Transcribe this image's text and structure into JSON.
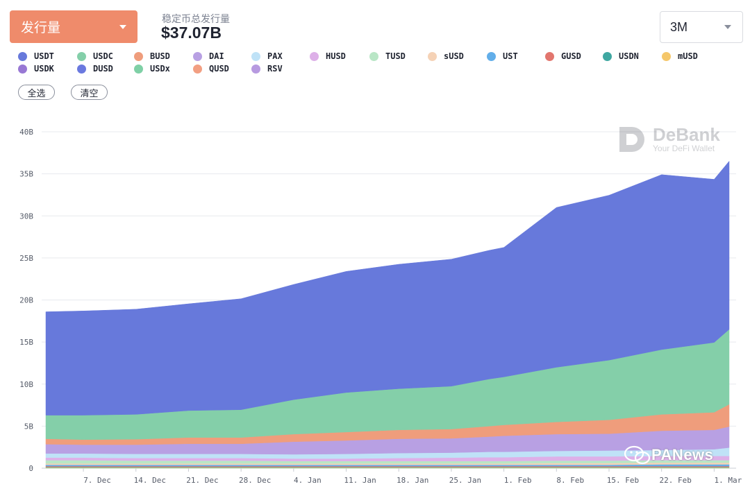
{
  "header": {
    "metric_label": "发行量",
    "total_label": "稳定币总发行量",
    "total_value": "$37.07B",
    "range_label": "3M"
  },
  "legend": [
    {
      "name": "USDT",
      "color": "#6779db"
    },
    {
      "name": "USDC",
      "color": "#84cfa9"
    },
    {
      "name": "BUSD",
      "color": "#ef9d7c"
    },
    {
      "name": "DAI",
      "color": "#b8a0e3"
    },
    {
      "name": "PAX",
      "color": "#bfe2f7"
    },
    {
      "name": "HUSD",
      "color": "#ddb0e8"
    },
    {
      "name": "TUSD",
      "color": "#b9e6c6"
    },
    {
      "name": "sUSD",
      "color": "#f5d2b6"
    },
    {
      "name": "UST",
      "color": "#62aee9"
    },
    {
      "name": "GUSD",
      "color": "#e2766e"
    },
    {
      "name": "USDN",
      "color": "#3fa7a1"
    },
    {
      "name": "mUSD",
      "color": "#f5c76a"
    },
    {
      "name": "USDK",
      "color": "#9878d4"
    },
    {
      "name": "DUSD",
      "color": "#6a79df"
    },
    {
      "name": "USDx",
      "color": "#7fd0a6"
    },
    {
      "name": "QUSD",
      "color": "#f29f82"
    },
    {
      "name": "RSV",
      "color": "#b79ae0"
    }
  ],
  "buttons": {
    "select_all": "全选",
    "clear": "清空"
  },
  "watermarks": {
    "debank_title": "DeBank",
    "debank_sub": "Your DeFi Wallet",
    "panews": "PANews"
  },
  "chart_data": {
    "type": "area",
    "stacked": true,
    "ylim": [
      0,
      40
    ],
    "yticks": [
      "0",
      "5B",
      "10B",
      "15B",
      "20B",
      "25B",
      "30B",
      "35B",
      "40B"
    ],
    "ytick_values": [
      0,
      5,
      10,
      15,
      20,
      25,
      30,
      35,
      40
    ],
    "unit": "B",
    "xticks": [
      "7. Dec",
      "14. Dec",
      "21. Dec",
      "28. Dec",
      "4. Jan",
      "11. Jan",
      "18. Jan",
      "25. Jan",
      "1. Feb",
      "8. Feb",
      "15. Feb",
      "22. Feb",
      "1. Mar"
    ],
    "x_range": [
      "2020-12-02",
      "2021-03-03"
    ],
    "x": [
      "2020-12-02",
      "2020-12-07",
      "2020-12-14",
      "2020-12-21",
      "2020-12-28",
      "2021-01-04",
      "2021-01-11",
      "2021-01-18",
      "2021-01-25",
      "2021-01-30",
      "2021-02-01",
      "2021-02-08",
      "2021-02-15",
      "2021-02-22",
      "2021-03-01",
      "2021-03-03"
    ],
    "series": [
      {
        "name": "USDx",
        "color": "#7fd0a6",
        "values": [
          0.05,
          0.05,
          0.05,
          0.05,
          0.05,
          0.05,
          0.05,
          0.05,
          0.05,
          0.05,
          0.05,
          0.05,
          0.05,
          0.05,
          0.05,
          0.05
        ]
      },
      {
        "name": "mUSD",
        "color": "#f5c76a",
        "values": [
          0.05,
          0.05,
          0.05,
          0.05,
          0.05,
          0.05,
          0.05,
          0.05,
          0.05,
          0.05,
          0.05,
          0.05,
          0.05,
          0.05,
          0.05,
          0.05
        ]
      },
      {
        "name": "USDN",
        "color": "#3fa7a1",
        "values": [
          0.05,
          0.05,
          0.05,
          0.05,
          0.05,
          0.05,
          0.05,
          0.05,
          0.05,
          0.05,
          0.05,
          0.05,
          0.05,
          0.05,
          0.05,
          0.05
        ]
      },
      {
        "name": "GUSD",
        "color": "#e2766e",
        "values": [
          0.1,
          0.1,
          0.1,
          0.1,
          0.1,
          0.1,
          0.1,
          0.1,
          0.1,
          0.1,
          0.1,
          0.1,
          0.1,
          0.1,
          0.1,
          0.1
        ]
      },
      {
        "name": "UST",
        "color": "#62aee9",
        "values": [
          0.15,
          0.15,
          0.15,
          0.15,
          0.15,
          0.15,
          0.15,
          0.15,
          0.15,
          0.15,
          0.15,
          0.15,
          0.15,
          0.2,
          0.2,
          0.2
        ]
      },
      {
        "name": "sUSD",
        "color": "#f5d2b6",
        "values": [
          0.15,
          0.15,
          0.15,
          0.15,
          0.15,
          0.15,
          0.15,
          0.15,
          0.15,
          0.15,
          0.15,
          0.2,
          0.2,
          0.2,
          0.2,
          0.2
        ]
      },
      {
        "name": "TUSD",
        "color": "#b9e6c6",
        "values": [
          0.4,
          0.4,
          0.35,
          0.35,
          0.35,
          0.3,
          0.3,
          0.3,
          0.3,
          0.3,
          0.3,
          0.3,
          0.3,
          0.3,
          0.3,
          0.3
        ]
      },
      {
        "name": "HUSD",
        "color": "#ddb0e8",
        "values": [
          0.3,
          0.3,
          0.3,
          0.3,
          0.3,
          0.3,
          0.3,
          0.35,
          0.4,
          0.45,
          0.45,
          0.5,
          0.5,
          0.5,
          0.5,
          0.5
        ]
      },
      {
        "name": "PAX",
        "color": "#bfe2f7",
        "values": [
          0.5,
          0.5,
          0.5,
          0.5,
          0.5,
          0.5,
          0.55,
          0.6,
          0.6,
          0.65,
          0.65,
          0.65,
          0.7,
          0.7,
          0.8,
          1.0
        ]
      },
      {
        "name": "DAI",
        "color": "#b8a0e3",
        "values": [
          1.1,
          1.05,
          1.1,
          1.2,
          1.2,
          1.5,
          1.6,
          1.7,
          1.7,
          1.8,
          1.9,
          2.0,
          2.0,
          2.3,
          2.3,
          2.5
        ]
      },
      {
        "name": "BUSD",
        "color": "#ef9d7c",
        "values": [
          0.65,
          0.6,
          0.65,
          0.75,
          0.75,
          0.9,
          1.0,
          1.05,
          1.1,
          1.25,
          1.3,
          1.45,
          1.65,
          1.95,
          2.1,
          2.65
        ]
      },
      {
        "name": "USDC",
        "color": "#84cfa9",
        "values": [
          2.8,
          2.9,
          2.95,
          3.2,
          3.3,
          4.1,
          4.7,
          4.9,
          5.1,
          5.6,
          5.7,
          6.5,
          7.1,
          7.7,
          8.3,
          8.9
        ]
      },
      {
        "name": "USDT",
        "color": "#6779db",
        "values": [
          12.3,
          12.4,
          12.5,
          12.7,
          13.2,
          13.7,
          14.4,
          14.8,
          15.1,
          15.3,
          15.4,
          19.0,
          19.6,
          20.8,
          19.4,
          20.0
        ]
      }
    ]
  }
}
